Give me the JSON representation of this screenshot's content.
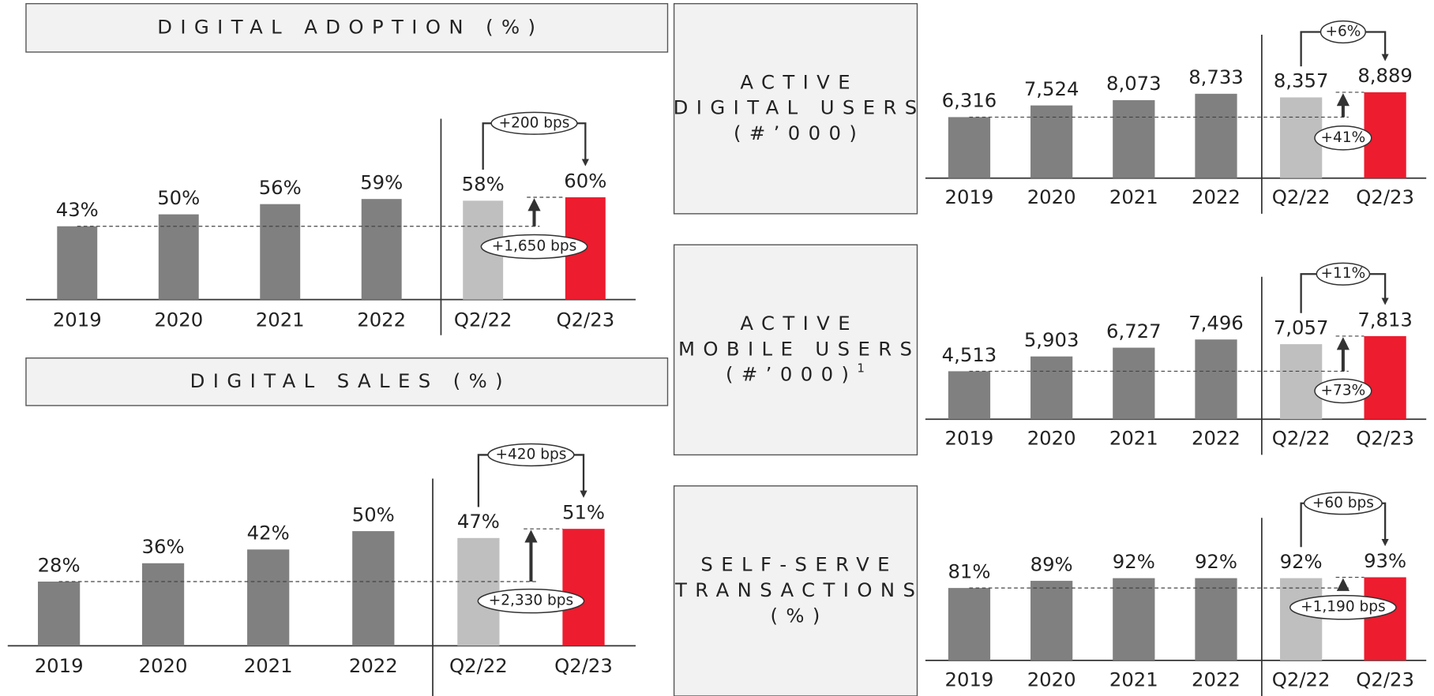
{
  "chart_data": [
    {
      "type": "bar",
      "title": [
        "DIGITAL ADOPTION (%)"
      ],
      "categories": [
        "2019",
        "2020",
        "2021",
        "2022",
        "Q2/22",
        "Q2/23"
      ],
      "values": [
        43,
        50,
        56,
        59,
        58,
        60
      ],
      "value_labels": [
        "43%",
        "50%",
        "56%",
        "59%",
        "58%",
        "60%"
      ],
      "colors": [
        "#808080",
        "#808080",
        "#808080",
        "#808080",
        "#bfbfbf",
        "#ed1c2e"
      ],
      "annotations": [
        "+200 bps",
        "+1,650 bps"
      ]
    },
    {
      "type": "bar",
      "title": [
        "DIGITAL SALES (%)"
      ],
      "categories": [
        "2019",
        "2020",
        "2021",
        "2022",
        "Q2/22",
        "Q2/23"
      ],
      "values": [
        28,
        36,
        42,
        50,
        47,
        51
      ],
      "value_labels": [
        "28%",
        "36%",
        "42%",
        "50%",
        "47%",
        "51%"
      ],
      "colors": [
        "#808080",
        "#808080",
        "#808080",
        "#808080",
        "#bfbfbf",
        "#ed1c2e"
      ],
      "annotations": [
        "+420 bps",
        "+2,330 bps"
      ]
    },
    {
      "type": "bar",
      "title": [
        "ACTIVE",
        "DIGITAL USERS",
        "(#’000)"
      ],
      "categories": [
        "2019",
        "2020",
        "2021",
        "2022",
        "Q2/22",
        "Q2/23"
      ],
      "values": [
        6316,
        7524,
        8073,
        8733,
        8357,
        8889
      ],
      "value_labels": [
        "6,316",
        "7,524",
        "8,073",
        "8,733",
        "8,357",
        "8,889"
      ],
      "colors": [
        "#808080",
        "#808080",
        "#808080",
        "#808080",
        "#bfbfbf",
        "#ed1c2e"
      ],
      "annotations": [
        "+6%",
        "+41%"
      ]
    },
    {
      "type": "bar",
      "title": [
        "ACTIVE",
        "MOBILE  USERS",
        "(#’000)"
      ],
      "footnote_mark": "1",
      "categories": [
        "2019",
        "2020",
        "2021",
        "2022",
        "Q2/22",
        "Q2/23"
      ],
      "values": [
        4513,
        5903,
        6727,
        7496,
        7057,
        7813
      ],
      "value_labels": [
        "4,513",
        "5,903",
        "6,727",
        "7,496",
        "7,057",
        "7,813"
      ],
      "colors": [
        "#808080",
        "#808080",
        "#808080",
        "#808080",
        "#bfbfbf",
        "#ed1c2e"
      ],
      "annotations": [
        "+11%",
        "+73%"
      ]
    },
    {
      "type": "bar",
      "title": [
        "SELF-SERVE",
        "TRANSACTIONS",
        "(%)"
      ],
      "categories": [
        "2019",
        "2020",
        "2021",
        "2022",
        "Q2/22",
        "Q2/23"
      ],
      "values": [
        81,
        89,
        92,
        92,
        92,
        93
      ],
      "value_labels": [
        "81%",
        "89%",
        "92%",
        "92%",
        "92%",
        "93%"
      ],
      "colors": [
        "#808080",
        "#808080",
        "#808080",
        "#808080",
        "#bfbfbf",
        "#ed1c2e"
      ],
      "annotations": [
        "+60 bps",
        "+1,190 bps"
      ]
    }
  ]
}
